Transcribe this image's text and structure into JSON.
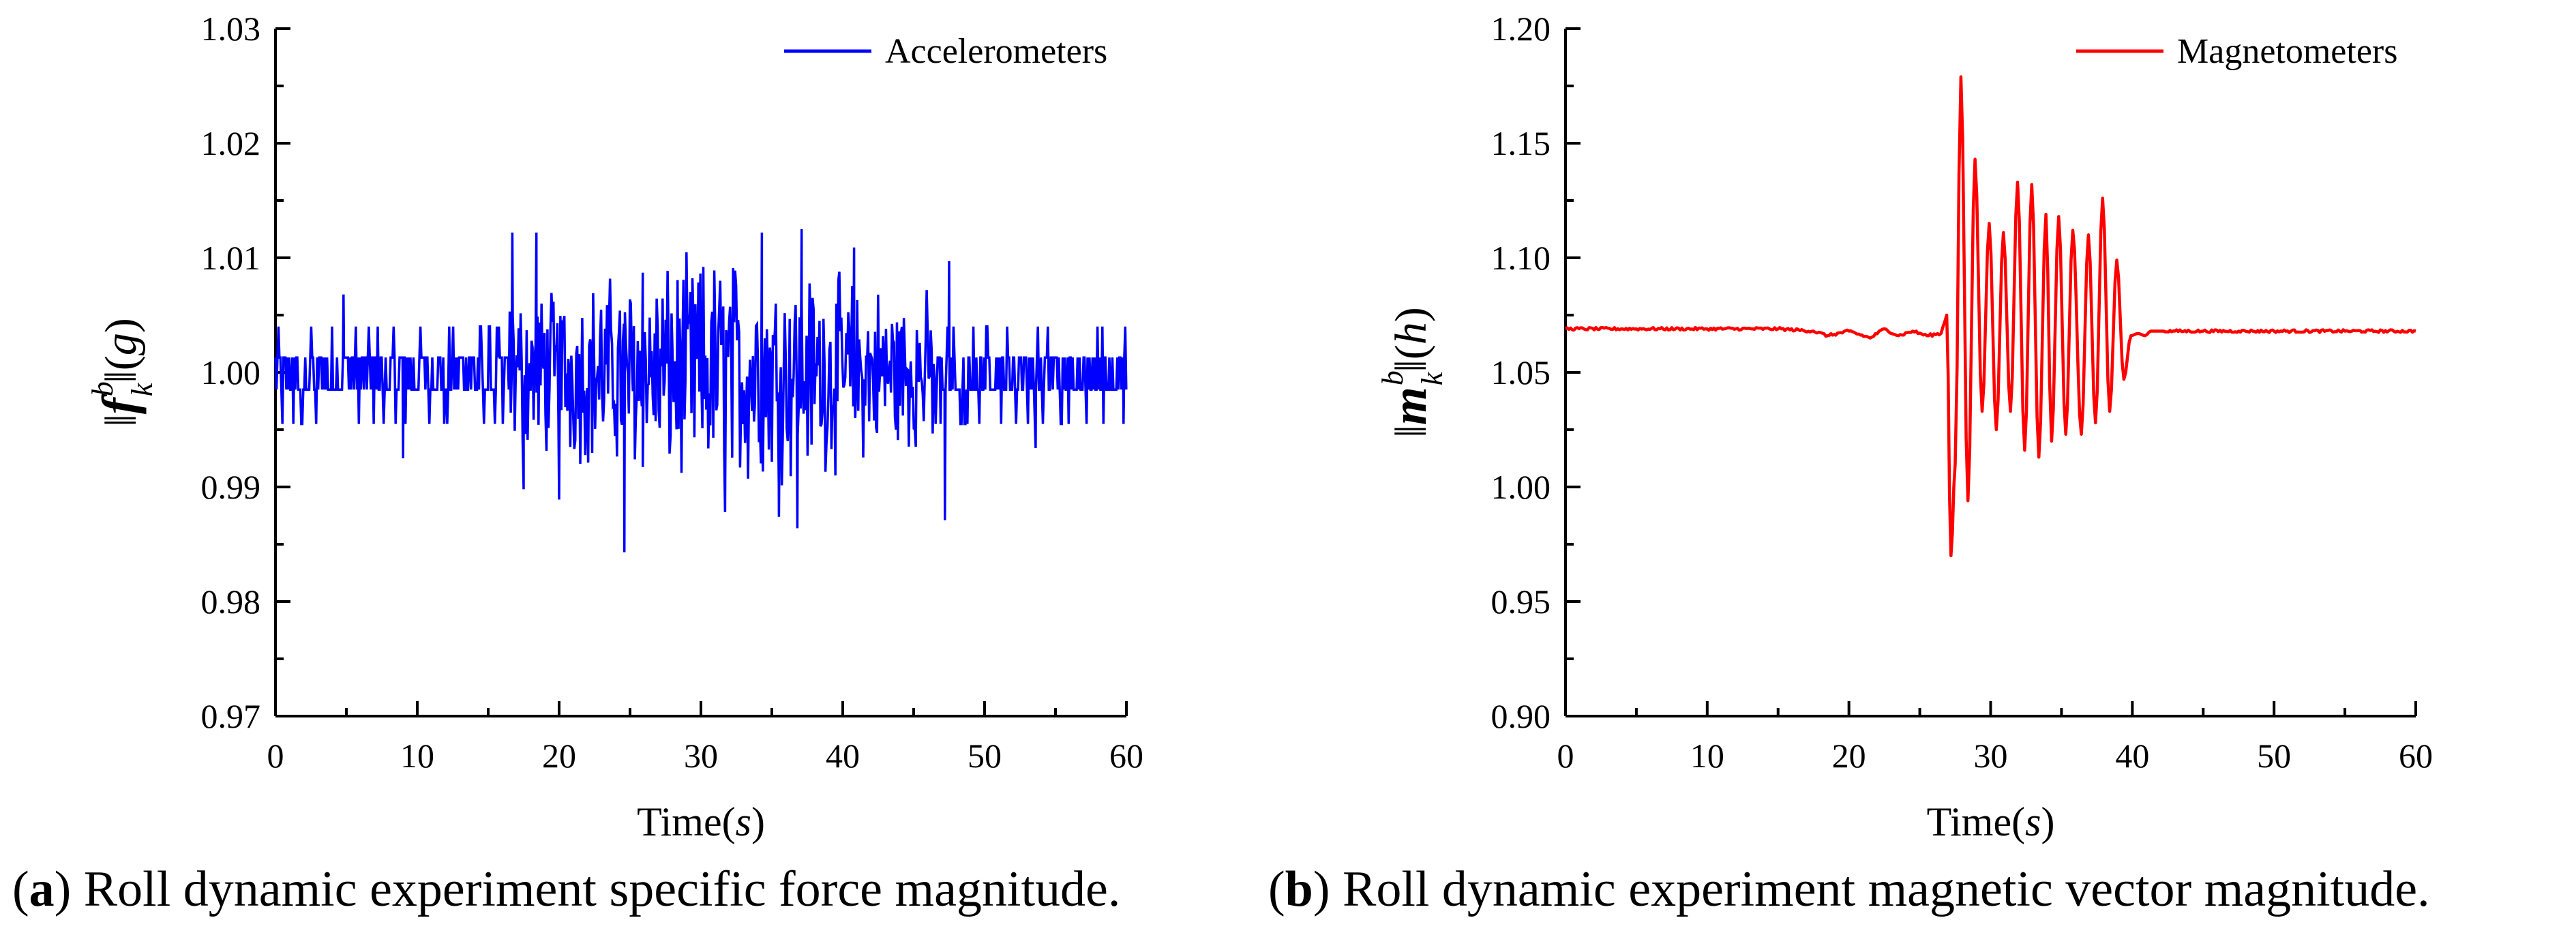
{
  "chart_data": [
    {
      "type": "line",
      "panel": "a",
      "xlabel": "Time(s)",
      "ylabel": "‖f_k^b‖(g)",
      "xlim": [
        0,
        60
      ],
      "ylim": [
        0.97,
        1.03
      ],
      "xticks": [
        "0",
        "10",
        "20",
        "30",
        "40",
        "50",
        "60"
      ],
      "yticks": [
        "0.97",
        "0.98",
        "0.99",
        "1.00",
        "1.01",
        "1.02",
        "1.03"
      ],
      "legend_position": "top-right",
      "grid": false,
      "series": [
        {
          "name": "Accelerometers",
          "color": "#0000ff",
          "style": "quantized noise",
          "quiet_levels": [
            0.9955,
            0.9985,
            1.0013,
            1.004
          ],
          "quiet_intervals": [
            [
              0,
              16.5
            ],
            [
              46.5,
              60
            ]
          ],
          "dynamic_interval": [
            16.5,
            46.5
          ],
          "y_min": 0.9842,
          "y_max": 1.0126,
          "peaks": [
            {
              "x": 4.8,
              "y": 1.0068
            },
            {
              "x": 9.0,
              "y": 0.9925
            },
            {
              "x": 16.7,
              "y": 1.0122
            },
            {
              "x": 17.5,
              "y": 0.9898
            },
            {
              "x": 18.4,
              "y": 1.0122
            },
            {
              "x": 20.0,
              "y": 0.9889
            },
            {
              "x": 24.6,
              "y": 0.9843
            },
            {
              "x": 25.9,
              "y": 1.0087
            },
            {
              "x": 31.7,
              "y": 0.9878
            },
            {
              "x": 34.3,
              "y": 1.0122
            },
            {
              "x": 35.5,
              "y": 0.9874
            },
            {
              "x": 36.8,
              "y": 0.9864
            },
            {
              "x": 37.1,
              "y": 1.0125
            },
            {
              "x": 40.8,
              "y": 1.0109
            },
            {
              "x": 47.2,
              "y": 0.9871
            },
            {
              "x": 47.5,
              "y": 1.0097
            },
            {
              "x": 53.6,
              "y": 0.9934
            },
            {
              "x": 59.8,
              "y": 0.9955
            }
          ]
        }
      ]
    },
    {
      "type": "line",
      "panel": "b",
      "xlabel": "Time(s)",
      "ylabel": "‖m_k^b‖(h)",
      "xlim": [
        0,
        60
      ],
      "ylim": [
        0.9,
        1.2
      ],
      "xticks": [
        "0",
        "10",
        "20",
        "30",
        "40",
        "50",
        "60"
      ],
      "yticks": [
        "0.90",
        "0.95",
        "1.00",
        "1.05",
        "1.10",
        "1.15",
        "1.20"
      ],
      "legend_position": "top-right",
      "grid": false,
      "series": [
        {
          "name": "Magnetometers",
          "color": "#ff0000",
          "x": [
            0,
            5,
            10,
            15,
            17.5,
            18.5,
            20,
            21.5,
            22.5,
            23.5,
            24.5,
            25.5,
            26.5,
            26.9,
            27.2,
            27.5,
            27.9,
            28.4,
            28.9,
            29.4,
            29.9,
            30.4,
            30.9,
            31.4,
            31.9,
            32.4,
            32.9,
            33.4,
            33.9,
            34.3,
            34.8,
            35.3,
            35.8,
            36.4,
            36.9,
            37.4,
            37.9,
            38.4,
            38.9,
            39.4,
            39.9,
            40.4,
            40.9,
            41.3,
            41.7,
            42.2,
            43,
            45,
            47.5,
            48.5,
            50,
            55,
            60
          ],
          "y": [
            1.069,
            1.069,
            1.069,
            1.069,
            1.068,
            1.066,
            1.068,
            1.065,
            1.069,
            1.066,
            1.068,
            1.066,
            1.067,
            1.075,
            0.97,
            1.01,
            1.179,
            0.994,
            1.143,
            1.033,
            1.115,
            1.025,
            1.111,
            1.033,
            1.133,
            1.016,
            1.132,
            1.013,
            1.119,
            1.02,
            1.118,
            1.023,
            1.112,
            1.023,
            1.11,
            1.028,
            1.126,
            1.033,
            1.099,
            1.047,
            1.066,
            1.067,
            1.066,
            1.068,
            1.068,
            1.068,
            1.068,
            1.068,
            1.068,
            1.068,
            1.068,
            1.068,
            1.068
          ]
        }
      ]
    }
  ],
  "captions": [
    {
      "letter": "a",
      "text": ") Roll dynamic experiment specific force magnitude."
    },
    {
      "letter": "b",
      "text": ") Roll dynamic experiment magnetic vector magnitude."
    }
  ]
}
